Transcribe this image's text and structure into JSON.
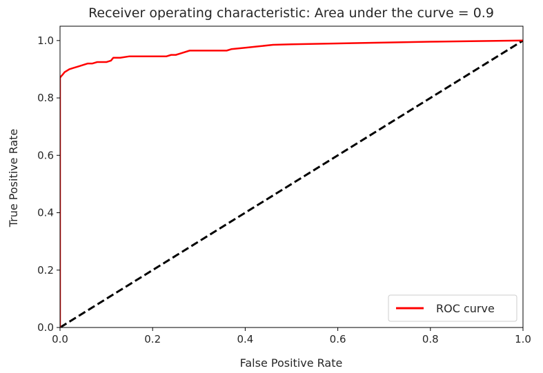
{
  "chart_data": {
    "type": "line",
    "title": "Receiver operating characteristic: Area under the curve = 0.9",
    "xlabel": "False Positive Rate",
    "ylabel": "True Positive Rate",
    "xlim": [
      0.0,
      1.0
    ],
    "ylim": [
      0.0,
      1.05
    ],
    "grid": false,
    "legend_position": "lower right",
    "x_ticks": [
      "0.0",
      "0.2",
      "0.4",
      "0.6",
      "0.8",
      "1.0"
    ],
    "y_ticks": [
      "0.0",
      "0.2",
      "0.4",
      "0.6",
      "0.8",
      "1.0"
    ],
    "series": [
      {
        "name": "ROC curve",
        "color": "#ff0000",
        "style": "solid",
        "x": [
          0.0,
          0.0,
          0.0,
          0.002,
          0.005,
          0.01,
          0.015,
          0.02,
          0.03,
          0.04,
          0.05,
          0.06,
          0.07,
          0.08,
          0.09,
          0.1,
          0.11,
          0.115,
          0.13,
          0.15,
          0.16,
          0.2,
          0.23,
          0.24,
          0.25,
          0.26,
          0.28,
          0.3,
          0.33,
          0.36,
          0.37,
          0.4,
          0.43,
          0.46,
          0.5,
          0.6,
          0.7,
          0.8,
          0.9,
          1.0
        ],
        "y": [
          0.0,
          0.86,
          0.87,
          0.875,
          0.88,
          0.89,
          0.895,
          0.9,
          0.905,
          0.91,
          0.915,
          0.92,
          0.92,
          0.925,
          0.925,
          0.925,
          0.93,
          0.94,
          0.94,
          0.945,
          0.945,
          0.945,
          0.945,
          0.95,
          0.95,
          0.955,
          0.965,
          0.965,
          0.965,
          0.965,
          0.97,
          0.975,
          0.98,
          0.985,
          0.987,
          0.99,
          0.993,
          0.996,
          0.998,
          1.0
        ]
      },
      {
        "color": "#000000",
        "style": "dashed",
        "x": [
          0.0,
          1.0
        ],
        "y": [
          0.0,
          1.0
        ]
      }
    ]
  }
}
